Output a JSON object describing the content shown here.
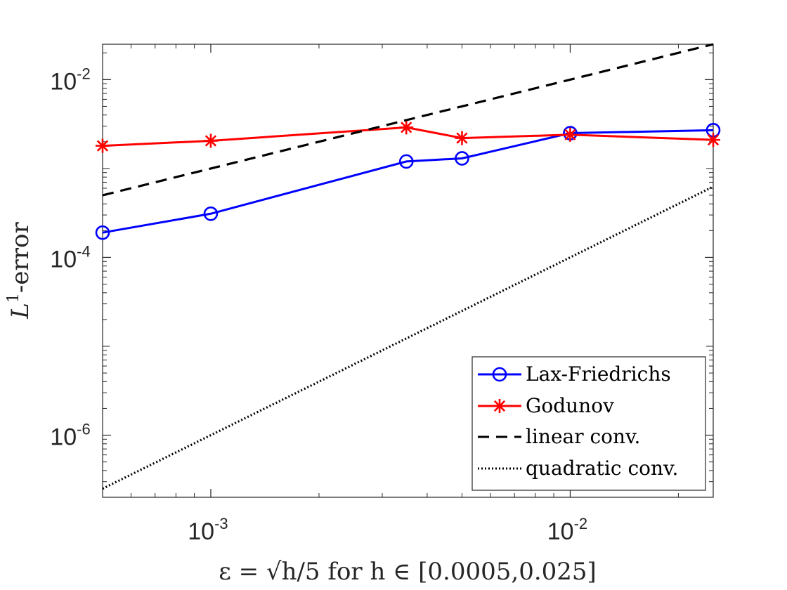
{
  "chart_data": {
    "type": "line",
    "xscale": "log",
    "yscale": "log",
    "xlim": [
      0.0005,
      0.025
    ],
    "ylim": [
      2e-07,
      0.025
    ],
    "xticks": [
      {
        "base": "10",
        "exp": "-3",
        "value": 0.001
      },
      {
        "base": "10",
        "exp": "-2",
        "value": 0.01
      }
    ],
    "yticks": [
      {
        "base": "10",
        "exp": "-6",
        "value": 1e-06
      },
      {
        "base": "10",
        "exp": "-4",
        "value": 0.0001
      },
      {
        "base": "10",
        "exp": "-2",
        "value": 0.01
      }
    ],
    "xlabel": "ε = √h/5 for h ∈ [0.0005,0.025]",
    "ylabel": {
      "main": "L",
      "sup": "1",
      "rest": "-error"
    },
    "legend_position": "bottom-right",
    "series": [
      {
        "name": "Lax-Friedrichs",
        "color": "#0000ff",
        "marker": "circle",
        "style": "solid",
        "x": [
          0.0005,
          0.001,
          0.0035,
          0.005,
          0.01,
          0.025
        ],
        "y": [
          0.00019,
          0.00031,
          0.0012,
          0.0013,
          0.0025,
          0.0027
        ]
      },
      {
        "name": "Godunov",
        "color": "#ff0000",
        "marker": "star",
        "style": "solid",
        "x": [
          0.0005,
          0.001,
          0.0035,
          0.005,
          0.01,
          0.025
        ],
        "y": [
          0.0018,
          0.00205,
          0.0029,
          0.0022,
          0.0024,
          0.0021
        ]
      },
      {
        "name": "linear conv.",
        "color": "#000000",
        "marker": "none",
        "style": "dashed",
        "x": [
          0.0005,
          0.025
        ],
        "y": [
          0.0005,
          0.025
        ]
      },
      {
        "name": "quadratic conv.",
        "color": "#000000",
        "marker": "none",
        "style": "dotted",
        "x": [
          0.0005,
          0.025
        ],
        "y": [
          2.5e-07,
          0.000625
        ]
      }
    ]
  }
}
